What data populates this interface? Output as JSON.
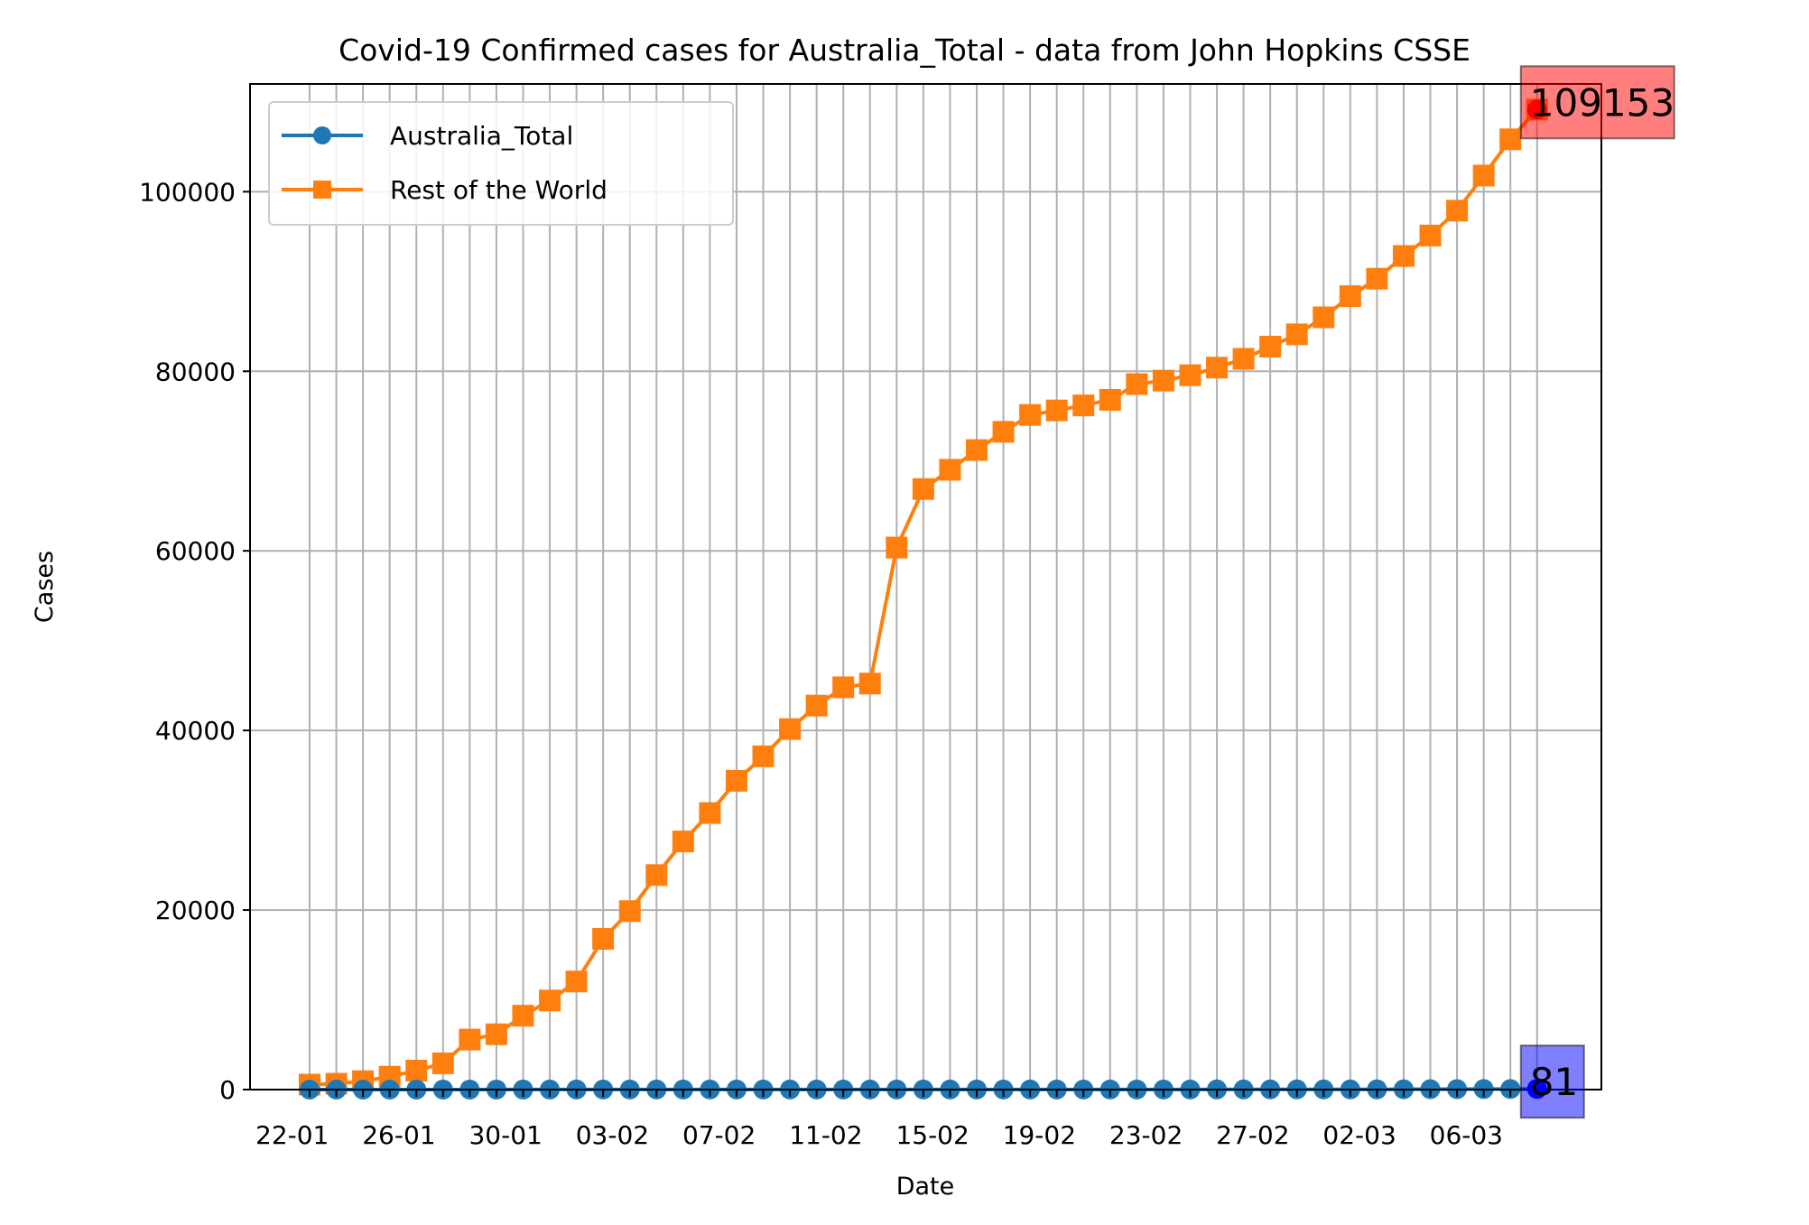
{
  "chart_data": {
    "type": "line",
    "title": "Covid-19 Confirmed cases for Australia_Total - data from John Hopkins CSSE",
    "xlabel": "Date",
    "ylabel": "Cases",
    "ylim": [
      0,
      112000
    ],
    "yticks": [
      0,
      20000,
      40000,
      60000,
      80000,
      100000
    ],
    "grid": true,
    "legend_position": "top-left",
    "x": [
      "22-01",
      "23-01",
      "24-01",
      "25-01",
      "26-01",
      "27-01",
      "28-01",
      "29-01",
      "30-01",
      "31-01",
      "01-02",
      "02-02",
      "03-02",
      "04-02",
      "05-02",
      "06-02",
      "07-02",
      "08-02",
      "09-02",
      "10-02",
      "11-02",
      "12-02",
      "13-02",
      "14-02",
      "15-02",
      "16-02",
      "17-02",
      "18-02",
      "19-02",
      "20-02",
      "21-02",
      "22-02",
      "23-02",
      "24-02",
      "25-02",
      "26-02",
      "27-02",
      "28-02",
      "29-02",
      "01-03",
      "02-03",
      "03-03",
      "04-03",
      "05-03",
      "06-03",
      "07-03",
      "08-03"
    ],
    "x_tick_labels": [
      "22-01",
      "26-01",
      "30-01",
      "03-02",
      "07-02",
      "11-02",
      "15-02",
      "19-02",
      "23-02",
      "27-02",
      "02-03",
      "06-03"
    ],
    "series": [
      {
        "name": "Australia_Total",
        "color": "#1f77b4",
        "marker": "circle",
        "values": [
          0,
          0,
          0,
          0,
          4,
          5,
          5,
          6,
          9,
          9,
          12,
          12,
          12,
          13,
          13,
          14,
          15,
          15,
          15,
          15,
          15,
          15,
          15,
          15,
          15,
          15,
          15,
          15,
          15,
          15,
          15,
          15,
          15,
          15,
          22,
          22,
          23,
          23,
          25,
          27,
          30,
          39,
          52,
          55,
          60,
          63,
          81
        ]
      },
      {
        "name": "Rest of the World",
        "color": "#ff7f0e",
        "marker": "square",
        "values": [
          555,
          654,
          941,
          1434,
          2114,
          2922,
          5573,
          6161,
          8230,
          9922,
          12036,
          16787,
          19881,
          23892,
          27636,
          30803,
          34391,
          37120,
          40150,
          42762,
          44802,
          45221,
          60368,
          66885,
          69030,
          71224,
          73258,
          75136,
          75639,
          76197,
          76819,
          78572,
          78958,
          79561,
          80406,
          81388,
          82746,
          84112,
          86011,
          88369,
          90306,
          92840,
          95120,
          97886,
          101800,
          105836,
          109153
        ]
      }
    ],
    "annotations": [
      {
        "text": "109153",
        "series": "Rest of the World",
        "color": "#ff0000"
      },
      {
        "text": "81",
        "series": "Australia_Total",
        "color": "#0000ff"
      }
    ]
  }
}
